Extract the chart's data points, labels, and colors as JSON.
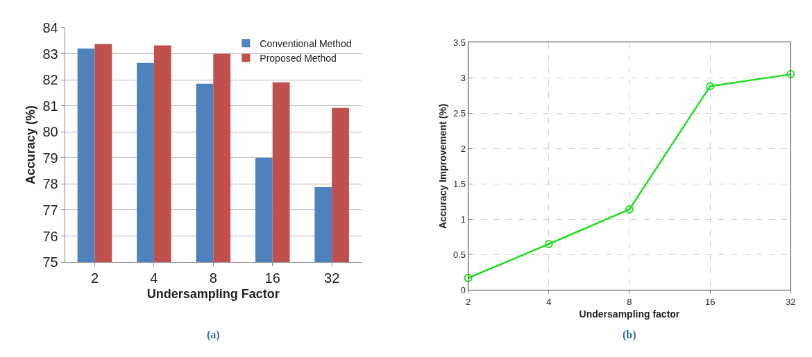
{
  "chart_data": [
    {
      "type": "bar",
      "xlabel": "Undersampling Factor",
      "ylabel": "Accuracy (%)",
      "categories": [
        "2",
        "4",
        "8",
        "16",
        "32"
      ],
      "series": [
        {
          "name": "Conventional Method",
          "color": "#4f81bd",
          "values": [
            83.2,
            82.65,
            81.85,
            79.0,
            77.88
          ]
        },
        {
          "name": "Proposed Method",
          "color": "#c0504d",
          "values": [
            83.37,
            83.32,
            83.0,
            81.9,
            80.92
          ]
        }
      ],
      "ylim": [
        75,
        84
      ],
      "yticks": [
        75,
        76,
        77,
        78,
        79,
        80,
        81,
        82,
        83,
        84
      ],
      "grid": "y",
      "legend": "top right",
      "annotations": [
        "(a)"
      ]
    },
    {
      "type": "line",
      "xlabel": "Undersampling factor",
      "ylabel": "Accuracy Improvement (%)",
      "categories": [
        "2",
        "4",
        "8",
        "16",
        "32"
      ],
      "series": [
        {
          "color": "#22dd22",
          "values": [
            0.17,
            0.65,
            1.14,
            2.88,
            3.05
          ]
        }
      ],
      "ylim": [
        0,
        3.5
      ],
      "yticks": [
        0,
        0.5,
        1,
        1.5,
        2,
        2.5,
        3,
        3.5
      ],
      "grid": true,
      "marker": "circle",
      "line_style": "solid",
      "annotations": [
        "(b)"
      ]
    }
  ]
}
